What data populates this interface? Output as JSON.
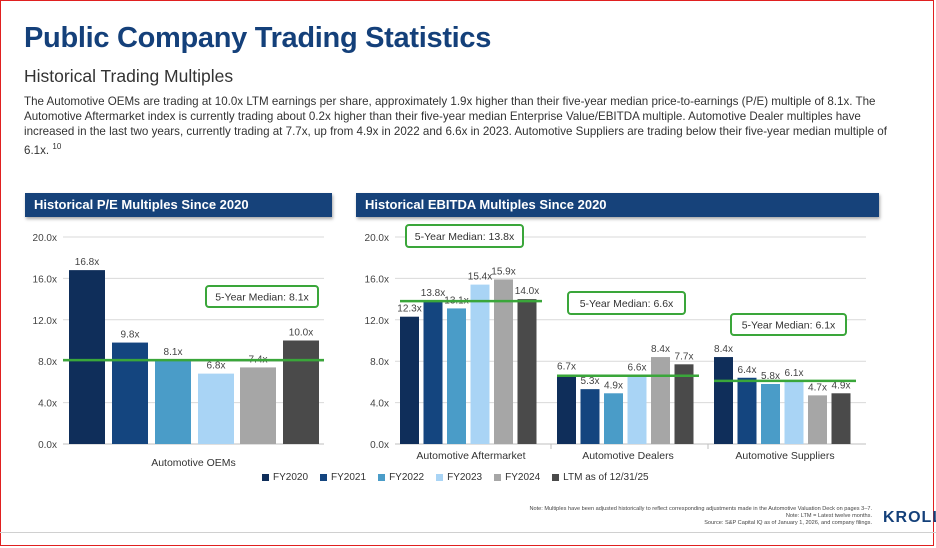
{
  "title": "Public Company Trading Statistics",
  "subtitle": "Historical Trading Multiples",
  "paragraph": "The Automotive OEMs are trading at 10.0x LTM earnings per share, approximately 1.9x higher than their five-year median price-to-earnings (P/E) multiple of 8.1x. The Automotive Aftermarket index is currently trading about 0.2x higher than their five-year median Enterprise Value/EBITDA multiple. Automotive Dealer multiples have increased in the last two years, currently trading at 7.7x, up from 4.9x in 2022 and 6.6x in 2023. Automotive Suppliers are trading below their five-year median multiple of 6.1x.",
  "footnote_ref": "10",
  "legend": {
    "items": [
      {
        "label": "FY2020",
        "color": "#0f2e5a"
      },
      {
        "label": "FY2021",
        "color": "#14457f"
      },
      {
        "label": "FY2022",
        "color": "#4a9cc8"
      },
      {
        "label": "FY2023",
        "color": "#a9d4f5"
      },
      {
        "label": "FY2024",
        "color": "#a6a6a6"
      },
      {
        "label": "LTM as of 12/31/25",
        "color": "#4a4a4a"
      }
    ]
  },
  "colors": {
    "median_line": "#3aa63a",
    "header_bg": "#16427a",
    "title": "#14407a"
  },
  "chart_data": [
    {
      "type": "bar",
      "title": "Historical P/E Multiples Since 2020",
      "categories": [
        "Automotive OEMs"
      ],
      "series_names": [
        "FY2020",
        "FY2021",
        "FY2022",
        "FY2023",
        "FY2024",
        "LTM as of 12/31/25"
      ],
      "values": [
        [
          16.8,
          9.8,
          8.1,
          6.8,
          7.4,
          10.0
        ]
      ],
      "value_labels": [
        [
          "16.8x",
          "9.8x",
          "8.1x",
          "6.8x",
          "7.4x",
          "10.0x"
        ]
      ],
      "ylim": [
        0,
        20
      ],
      "yticks": [
        0,
        4,
        8,
        12,
        16,
        20
      ],
      "ytick_labels": [
        "0.0x",
        "4.0x",
        "8.0x",
        "12.0x",
        "16.0x",
        "20.0x"
      ],
      "medians": [
        8.1
      ],
      "median_labels": [
        "5-Year Median: 8.1x"
      ],
      "xlabel": "",
      "ylabel": ""
    },
    {
      "type": "bar",
      "title": "Historical EBITDA Multiples Since 2020",
      "categories": [
        "Automotive Aftermarket",
        "Automotive Dealers",
        "Automotive Suppliers"
      ],
      "series_names": [
        "FY2020",
        "FY2021",
        "FY2022",
        "FY2023",
        "FY2024",
        "LTM as of 12/31/25"
      ],
      "values": [
        [
          12.3,
          13.8,
          13.1,
          15.4,
          15.9,
          14.0
        ],
        [
          6.7,
          5.3,
          4.9,
          6.6,
          8.4,
          7.7
        ],
        [
          8.4,
          6.4,
          5.8,
          6.1,
          4.7,
          4.9
        ]
      ],
      "value_labels": [
        [
          "12.3x",
          "13.8x",
          "13.1x",
          "15.4x",
          "15.9x",
          "14.0x"
        ],
        [
          "6.7x",
          "5.3x",
          "4.9x",
          "6.6x",
          "8.4x",
          "7.7x"
        ],
        [
          "8.4x",
          "6.4x",
          "5.8x",
          "6.1x",
          "4.7x",
          "4.9x"
        ]
      ],
      "ylim": [
        0,
        20
      ],
      "yticks": [
        0,
        4,
        8,
        12,
        16,
        20
      ],
      "ytick_labels": [
        "0.0x",
        "4.0x",
        "8.0x",
        "12.0x",
        "16.0x",
        "20.0x"
      ],
      "medians": [
        13.8,
        6.6,
        6.1
      ],
      "median_labels": [
        "5-Year Median: 13.8x",
        "5-Year Median: 6.6x",
        "5-Year Median: 6.1x"
      ],
      "xlabel": "",
      "ylabel": ""
    }
  ],
  "note": {
    "line1": "Note: Multiples have been adjusted historically to reflect corresponding adjustments made in the Automotive Valuation Deck on pages 3–7.",
    "line2": "Note: LTM = Latest twelve months.",
    "line3": "Source: S&P Capital IQ as of January 1, 2026, and company filings."
  },
  "logo": "KROLL"
}
